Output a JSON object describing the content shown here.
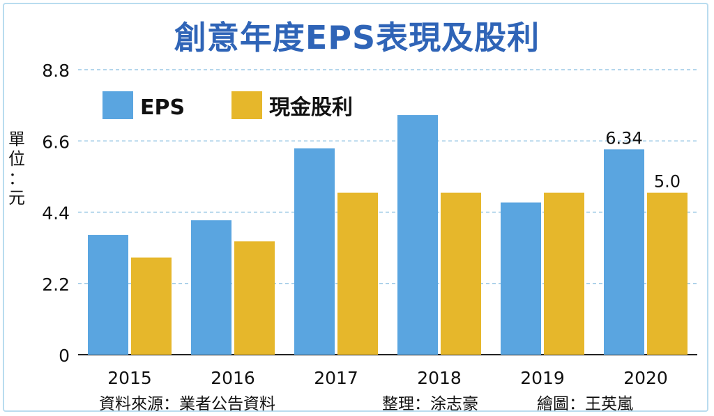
{
  "title": "創意年度EPS表現及股利",
  "unit_label": [
    "單",
    "位",
    "：",
    "元"
  ],
  "footer": {
    "source": "資料來源：業者公告資料",
    "editor": "整理：涂志豪",
    "illustrator": "繪圖：王英嵐"
  },
  "colors": {
    "eps": "#5aa5e0",
    "dividend": "#e6b72b",
    "grid": "#9cc9e6",
    "title": "#2f64b7"
  },
  "chart_data": {
    "type": "bar",
    "categories": [
      "2015",
      "2016",
      "2017",
      "2018",
      "2019",
      "2020"
    ],
    "series": [
      {
        "name": "EPS",
        "values": [
          3.7,
          4.15,
          6.37,
          7.4,
          4.7,
          6.34
        ]
      },
      {
        "name": "現金股利",
        "values": [
          3.0,
          3.5,
          5.0,
          5.0,
          5.0,
          5.0
        ]
      }
    ],
    "yticks": [
      "0",
      "2.2",
      "4.4",
      "6.6",
      "8.8"
    ],
    "ylim": [
      0,
      8.8
    ],
    "grid": true,
    "legend_position": "top-left",
    "annotations": [
      {
        "category": "2020",
        "series": "EPS",
        "text": "6.34"
      },
      {
        "category": "2020",
        "series": "現金股利",
        "text": "5.0"
      }
    ]
  }
}
